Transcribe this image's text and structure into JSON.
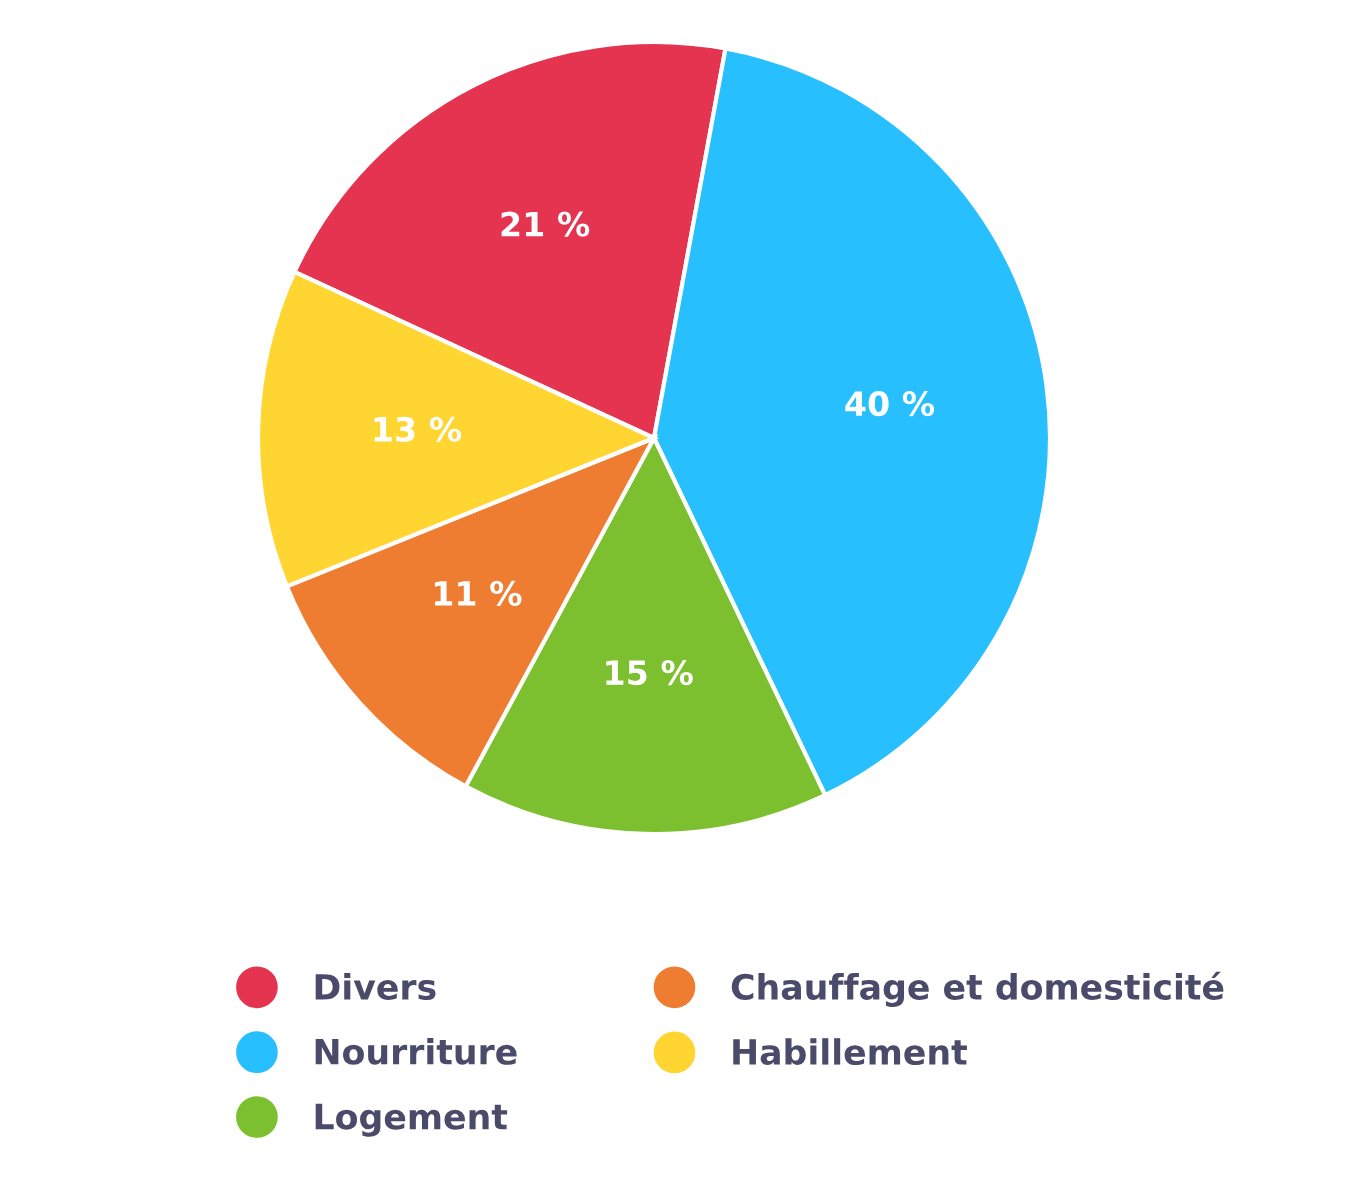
{
  "chart_data": {
    "type": "pie",
    "categories": [
      "Divers",
      "Nourriture",
      "Logement",
      "Chauffage et domesticité",
      "Habillement"
    ],
    "values": [
      21,
      40,
      15,
      11,
      13
    ],
    "colors": [
      "#e5344f",
      "#27bffd",
      "#7cc030",
      "#ee7d31",
      "#fed531"
    ],
    "value_labels": [
      "21 %",
      "40 %",
      "15 %",
      "11 %",
      "13 %"
    ],
    "legend": "bottom"
  }
}
